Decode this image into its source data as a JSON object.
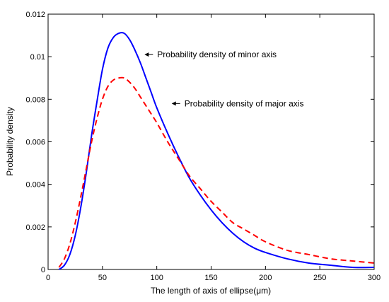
{
  "chart_data": {
    "type": "line",
    "xlabel": "The length of axis of ellipse(μm)",
    "ylabel": "Probability density",
    "xlim": [
      0,
      300
    ],
    "ylim": [
      0,
      0.012
    ],
    "xticks": [
      0,
      50,
      100,
      150,
      200,
      250,
      300
    ],
    "yticks": [
      0,
      0.002,
      0.004,
      0.006,
      0.008,
      0.01,
      0.012
    ],
    "xtick_labels": [
      "0",
      "50",
      "100",
      "150",
      "200",
      "250",
      "300"
    ],
    "ytick_labels": [
      "0",
      "0.002",
      "0.004",
      "0.006",
      "0.008",
      "0.01",
      "0.012"
    ],
    "grid": false,
    "series": [
      {
        "name": "minor axis",
        "color": "#0000ff",
        "style": "solid",
        "x": [
          10,
          15,
          20,
          25,
          30,
          35,
          40,
          45,
          50,
          55,
          60,
          65,
          70,
          75,
          80,
          85,
          90,
          95,
          100,
          110,
          120,
          130,
          140,
          150,
          160,
          170,
          180,
          190,
          200,
          220,
          240,
          260,
          280,
          300
        ],
        "y": [
          0.0,
          0.0002,
          0.0007,
          0.0016,
          0.0029,
          0.0045,
          0.0063,
          0.0079,
          0.0094,
          0.0104,
          0.0109,
          0.0111,
          0.0111,
          0.0108,
          0.0103,
          0.0097,
          0.009,
          0.0083,
          0.0076,
          0.0064,
          0.0053,
          0.0043,
          0.0035,
          0.0028,
          0.0022,
          0.0017,
          0.0013,
          0.001,
          0.0008,
          0.0005,
          0.0003,
          0.0002,
          0.0001,
          0.0001
        ]
      },
      {
        "name": "major axis",
        "color": "#ff0000",
        "style": "dashed",
        "x": [
          10,
          15,
          20,
          25,
          30,
          35,
          40,
          45,
          50,
          55,
          60,
          65,
          70,
          75,
          80,
          85,
          90,
          95,
          100,
          110,
          120,
          130,
          140,
          150,
          160,
          170,
          180,
          190,
          200,
          220,
          240,
          260,
          280,
          300
        ],
        "y": [
          0.0001,
          0.0005,
          0.0012,
          0.0022,
          0.0034,
          0.0047,
          0.006,
          0.0071,
          0.008,
          0.0086,
          0.0089,
          0.009,
          0.009,
          0.0088,
          0.0085,
          0.0081,
          0.0077,
          0.0073,
          0.0069,
          0.006,
          0.0052,
          0.0044,
          0.0038,
          0.0032,
          0.0027,
          0.0022,
          0.0019,
          0.0016,
          0.0013,
          0.0009,
          0.0007,
          0.0005,
          0.0004,
          0.0003
        ]
      }
    ],
    "annotations": [
      {
        "text": "Probability density of minor axis",
        "x": 90,
        "y": 0.0101,
        "series": 0
      },
      {
        "text": "Probability density of major axis",
        "x": 115,
        "y": 0.0078,
        "series": 1
      }
    ]
  }
}
